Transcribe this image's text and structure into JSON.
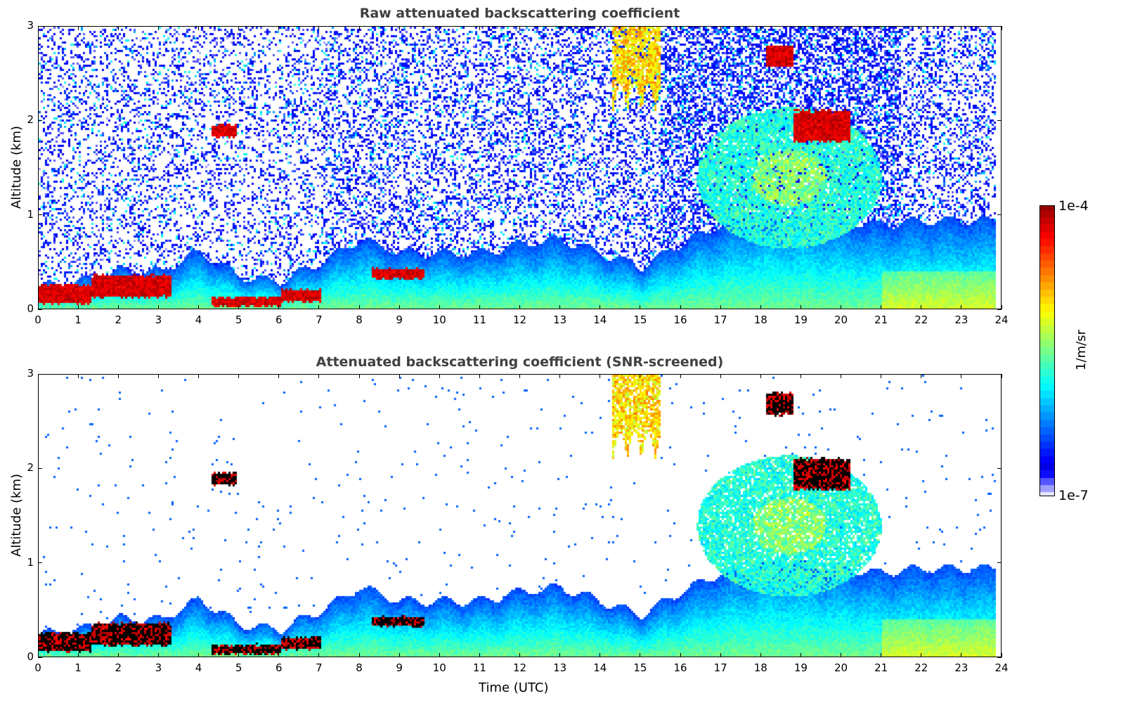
{
  "chart_data": [
    {
      "type": "heatmap",
      "title": "Raw attenuated backscattering coefficient",
      "xlabel": "",
      "ylabel": "Altitude (km)",
      "xlim": [
        0,
        24
      ],
      "ylim": [
        0,
        3
      ],
      "xticks": [
        "0",
        "1",
        "2",
        "3",
        "4",
        "5",
        "6",
        "7",
        "8",
        "9",
        "10",
        "11",
        "12",
        "13",
        "14",
        "15",
        "16",
        "17",
        "18",
        "19",
        "20",
        "21",
        "22",
        "23",
        "24"
      ],
      "yticks": [
        "0",
        "1",
        "2",
        "3"
      ],
      "screened": false
    },
    {
      "type": "heatmap",
      "title": "Attenuated backscattering coefficient (SNR-screened)",
      "xlabel": "Time (UTC)",
      "ylabel": "Altitude (km)",
      "xlim": [
        0,
        24
      ],
      "ylim": [
        0,
        3
      ],
      "xticks": [
        "0",
        "1",
        "2",
        "3",
        "4",
        "5",
        "6",
        "7",
        "8",
        "9",
        "10",
        "11",
        "12",
        "13",
        "14",
        "15",
        "16",
        "17",
        "18",
        "19",
        "20",
        "21",
        "22",
        "23",
        "24"
      ],
      "yticks": [
        "0",
        "1",
        "2",
        "3"
      ],
      "screened": true
    }
  ],
  "colorbar": {
    "label": "1/m/sr",
    "min_label": "1e-7",
    "max_label": "1e-4",
    "log10_range": [
      -7,
      -4
    ],
    "colormap": "jet"
  },
  "features": {
    "aerosol_layer_top_km_hourly": [
      0.25,
      0.3,
      0.42,
      0.4,
      0.62,
      0.35,
      0.3,
      0.5,
      0.75,
      0.6,
      0.6,
      0.6,
      0.7,
      0.75,
      0.6,
      0.45,
      0.7,
      0.9,
      1.0,
      1.0,
      0.95,
      0.9,
      0.95,
      0.95,
      0.95
    ],
    "strong_layers": [
      {
        "t0": 0,
        "t1": 1.3,
        "z0": 0.08,
        "z1": 0.25
      },
      {
        "t0": 1.3,
        "t1": 3.3,
        "z0": 0.15,
        "z1": 0.35
      },
      {
        "t0": 4.3,
        "t1": 6.0,
        "z0": 0.05,
        "z1": 0.12
      },
      {
        "t0": 6.0,
        "t1": 7.0,
        "z0": 0.1,
        "z1": 0.2
      },
      {
        "t0": 8.3,
        "t1": 9.6,
        "z0": 0.35,
        "z1": 0.42
      },
      {
        "t0": 4.3,
        "t1": 4.9,
        "z0": 1.85,
        "z1": 1.95
      },
      {
        "t0": 18.1,
        "t1": 18.8,
        "z0": 2.6,
        "z1": 2.8
      },
      {
        "t0": 18.8,
        "t1": 20.2,
        "z0": 1.8,
        "z1": 2.1
      }
    ],
    "cirrus": {
      "t0": 14.3,
      "t1": 15.5,
      "z0": 2.1,
      "z1": 3.0
    },
    "cloud_plume": {
      "t0": 16.5,
      "t1": 21.3,
      "z0": 0.8,
      "z1": 2.2
    }
  }
}
